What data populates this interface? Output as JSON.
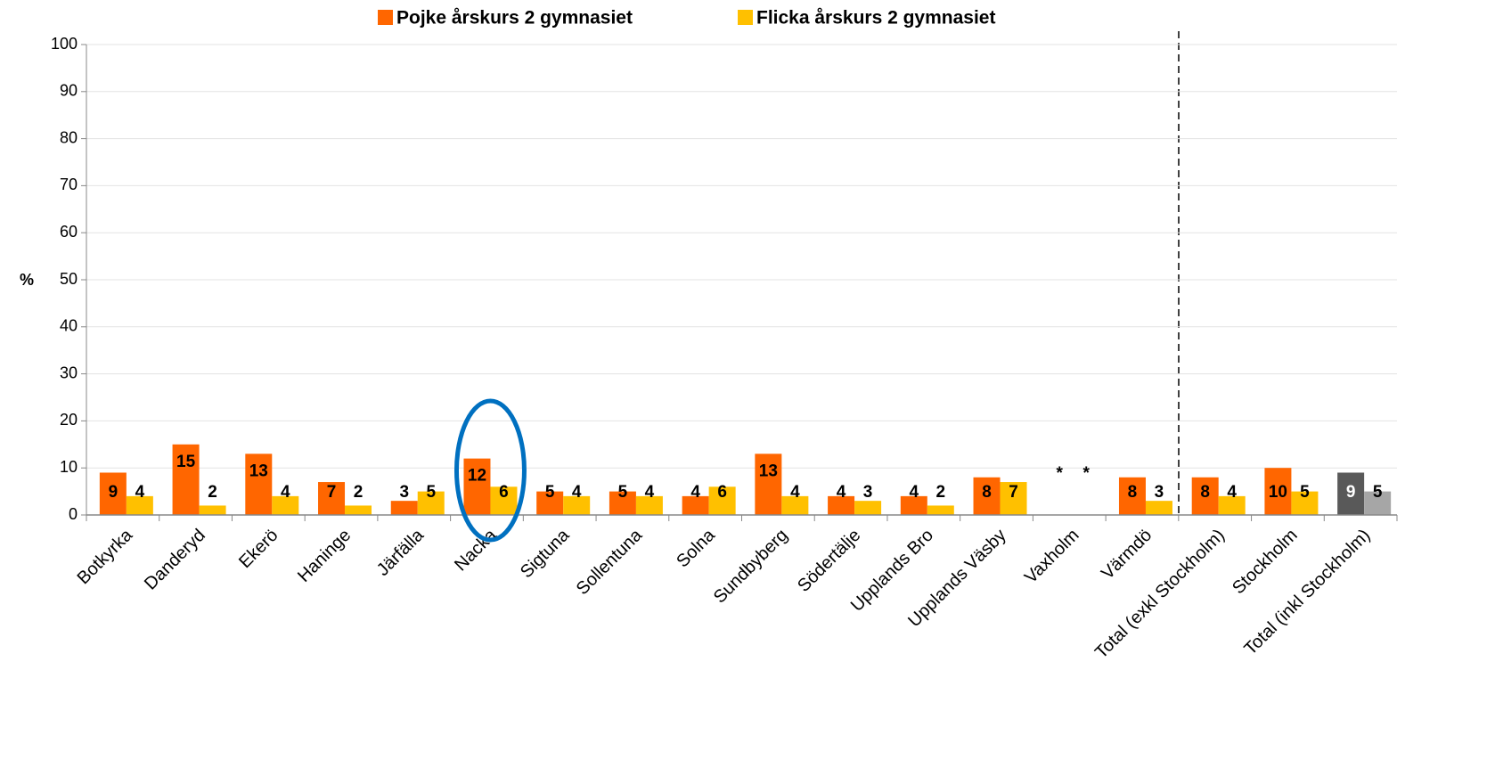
{
  "chart_data": {
    "type": "bar",
    "y_label": "%",
    "categories": [
      "Botkyrka",
      "Danderyd",
      "Ekerö",
      "Haninge",
      "Järfälla",
      "Nacka",
      "Sigtuna",
      "Sollentuna",
      "Solna",
      "Sundbyberg",
      "Södertälje",
      "Upplands Bro",
      "Upplands Väsby",
      "Vaxholm",
      "Värmdö",
      "Total (exkl Stockholm)",
      "Stockholm",
      "Total (inkl Stockholm)"
    ],
    "series": [
      {
        "name": "Pojke årskurs 2 gymnasiet",
        "color": "#ff6600",
        "values": [
          9,
          15,
          13,
          7,
          3,
          12,
          5,
          5,
          4,
          13,
          4,
          4,
          8,
          null,
          8,
          8,
          10,
          9
        ],
        "value_labels": [
          null,
          null,
          null,
          null,
          null,
          null,
          null,
          null,
          null,
          null,
          null,
          null,
          null,
          "*",
          null,
          null,
          null,
          null
        ],
        "point_colors": [
          null,
          null,
          null,
          null,
          null,
          null,
          null,
          null,
          null,
          null,
          null,
          null,
          null,
          null,
          null,
          null,
          null,
          "#595959"
        ]
      },
      {
        "name": "Flicka årskurs 2 gymnasiet",
        "color": "#ffc000",
        "values": [
          4,
          2,
          4,
          2,
          5,
          6,
          4,
          4,
          6,
          4,
          3,
          2,
          7,
          null,
          3,
          4,
          5,
          5
        ],
        "value_labels": [
          null,
          null,
          null,
          null,
          null,
          null,
          null,
          null,
          null,
          null,
          null,
          null,
          null,
          "*",
          null,
          null,
          null,
          null
        ],
        "point_colors": [
          null,
          null,
          null,
          null,
          null,
          null,
          null,
          null,
          null,
          null,
          null,
          null,
          null,
          null,
          null,
          null,
          null,
          "#a6a6a6"
        ]
      }
    ],
    "ylim": [
      0,
      100
    ],
    "yticks": [
      0,
      10,
      20,
      30,
      40,
      50,
      60,
      70,
      80,
      90,
      100
    ],
    "grid": true,
    "legend": "top"
  }
}
